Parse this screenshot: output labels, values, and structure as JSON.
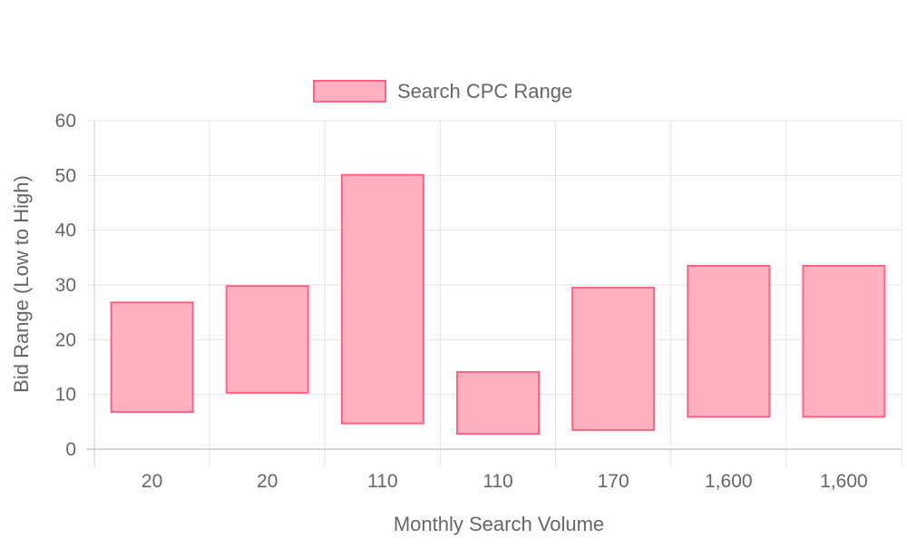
{
  "chart_data": {
    "type": "bar",
    "subtype": "floating-range",
    "categories": [
      "20",
      "20",
      "110",
      "110",
      "170",
      "1,600",
      "1,600"
    ],
    "series": [
      {
        "name": "Search CPC Range",
        "ranges": [
          [
            6.8,
            26.8
          ],
          [
            10.3,
            29.8
          ],
          [
            4.7,
            50.1
          ],
          [
            2.8,
            14.1
          ],
          [
            3.5,
            29.5
          ],
          [
            5.9,
            33.5
          ],
          [
            5.9,
            33.5
          ]
        ]
      }
    ],
    "xlabel": "Monthly Search Volume",
    "ylabel": "Bid Range (Low to High)",
    "ylim": [
      0,
      60
    ],
    "yticks": [
      "0",
      "10",
      "20",
      "30",
      "40",
      "50",
      "60"
    ],
    "grid": true,
    "legend": "top-center",
    "colors": {
      "bar_fill": "#ffb1c1",
      "bar_stroke": "#ff6384",
      "grid": "#e5e5e5",
      "axis": "#c8c8c8",
      "text": "#666666"
    }
  }
}
